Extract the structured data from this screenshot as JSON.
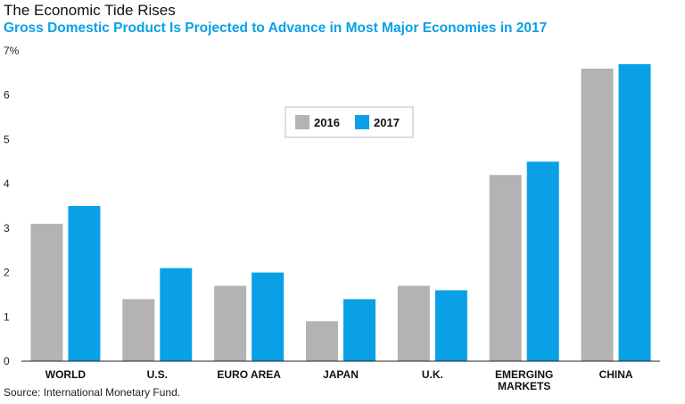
{
  "chart_data": {
    "type": "bar",
    "title": "The Economic Tide Rises",
    "subtitle": "Gross Domestic Product Is Projected to Advance in Most Major Economies in 2017",
    "source": "Source: International Monetary Fund.",
    "categories": [
      "WORLD",
      "U.S.",
      "EURO AREA",
      "JAPAN",
      "U.K.",
      "EMERGING|MARKETS",
      "CHINA"
    ],
    "series": [
      {
        "name": "2016",
        "color": "#b3b3b3",
        "values": [
          3.1,
          1.4,
          1.7,
          0.9,
          1.7,
          4.2,
          6.6
        ]
      },
      {
        "name": "2017",
        "color": "#0aa0e6",
        "values": [
          3.5,
          2.1,
          2.0,
          1.4,
          1.6,
          4.5,
          6.7
        ]
      }
    ],
    "yticks": [
      "0",
      "1",
      "2",
      "3",
      "4",
      "5",
      "6",
      "7%"
    ],
    "ylim": [
      0,
      7
    ],
    "legend_position": "top-center"
  }
}
